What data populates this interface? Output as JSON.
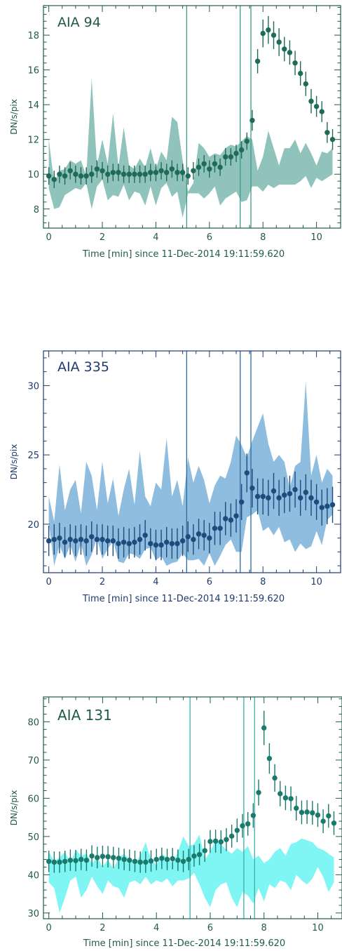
{
  "chart_data": [
    {
      "type": "scatter",
      "title": "AIA 94",
      "xlabel": "Time [min] since 11-Dec-2014 19:11:59.620",
      "ylabel": "DN/s/pix",
      "xlim": [
        -0.2,
        10.9
      ],
      "ylim": [
        6.9,
        19.7
      ],
      "xticks": [
        0,
        2,
        4,
        6,
        8,
        10
      ],
      "yticks": [
        8,
        10,
        12,
        14,
        16,
        18
      ],
      "vlines": [
        5.15,
        7.15,
        7.55
      ],
      "colors": {
        "axis": "#1f5a4a",
        "marker": "#1f6b57",
        "band": "#8fc3bc",
        "vline": "#3a9a8c"
      },
      "x": [
        0,
        0.2,
        0.4,
        0.6,
        0.8,
        1.0,
        1.2,
        1.4,
        1.6,
        1.8,
        2.0,
        2.2,
        2.4,
        2.6,
        2.8,
        3.0,
        3.2,
        3.4,
        3.6,
        3.8,
        4.0,
        4.2,
        4.4,
        4.6,
        4.8,
        5.0,
        5.2,
        5.4,
        5.6,
        5.8,
        6.0,
        6.2,
        6.4,
        6.6,
        6.8,
        7.0,
        7.2,
        7.4,
        7.6,
        7.8,
        8.0,
        8.2,
        8.4,
        8.6,
        8.8,
        9.0,
        9.2,
        9.4,
        9.6,
        9.8,
        10.0,
        10.2,
        10.4,
        10.6
      ],
      "y": [
        9.9,
        9.7,
        10.0,
        9.9,
        10.2,
        10.0,
        9.9,
        9.9,
        10.0,
        10.3,
        10.2,
        10.0,
        10.1,
        10.1,
        10.0,
        10.0,
        10.0,
        10.0,
        10.0,
        10.1,
        10.1,
        10.2,
        10.1,
        10.3,
        10.1,
        10.1,
        9.9,
        10.2,
        10.4,
        10.6,
        10.3,
        10.6,
        10.4,
        11.0,
        11.0,
        11.2,
        11.4,
        11.9,
        13.1,
        16.5,
        18.1,
        18.3,
        18.0,
        17.6,
        17.2,
        17.0,
        16.4,
        15.8,
        15.2,
        14.2,
        13.9,
        13.6,
        12.4,
        12.0
      ],
      "err": [
        0.5,
        0.5,
        0.5,
        0.5,
        0.5,
        0.5,
        0.5,
        0.5,
        0.5,
        0.5,
        0.5,
        0.5,
        0.5,
        0.5,
        0.5,
        0.5,
        0.5,
        0.5,
        0.5,
        0.5,
        0.5,
        0.5,
        0.5,
        0.5,
        0.5,
        0.5,
        0.5,
        0.5,
        0.5,
        0.5,
        0.5,
        0.5,
        0.5,
        0.5,
        0.5,
        0.5,
        0.5,
        0.5,
        0.6,
        0.7,
        0.8,
        0.8,
        0.8,
        0.8,
        0.7,
        0.7,
        0.7,
        0.7,
        0.7,
        0.7,
        0.6,
        0.6,
        0.6,
        0.6
      ],
      "band_upper": [
        12.0,
        9.5,
        10.2,
        10.3,
        10.8,
        10.6,
        10.8,
        9.9,
        15.5,
        10.5,
        12.0,
        10.6,
        13.5,
        10.4,
        12.7,
        10.5,
        10.3,
        10.9,
        10.4,
        11.5,
        10.3,
        11.3,
        10.8,
        13.3,
        13.0,
        10.8,
        9.0,
        9.5,
        11.8,
        11.5,
        11.0,
        11.2,
        11.1,
        11.5,
        11.7,
        11.6,
        11.9,
        12.2,
        12.0,
        10.2,
        11.0,
        12.5,
        11.5,
        10.5,
        11.5,
        11.5,
        12.0,
        11.2,
        11.8,
        11.2,
        10.5,
        11.3,
        11.2,
        11.5
      ],
      "band_lower": [
        9.2,
        8.0,
        8.1,
        8.8,
        9.0,
        9.2,
        9.1,
        9.5,
        8.0,
        9.3,
        9.7,
        8.5,
        8.8,
        8.7,
        9.4,
        8.5,
        9.0,
        8.9,
        8.2,
        9.3,
        8.2,
        9.2,
        9.5,
        8.7,
        9.0,
        7.5,
        8.9,
        8.9,
        8.9,
        8.6,
        8.9,
        9.3,
        8.2,
        8.6,
        8.8,
        9.0,
        8.4,
        8.5,
        9.3,
        9.3,
        9.0,
        9.4,
        9.2,
        9.4,
        9.4,
        9.4,
        9.4,
        9.6,
        9.9,
        9.2,
        9.8,
        9.6,
        9.8,
        10.0
      ]
    },
    {
      "type": "scatter",
      "title": "AIA 335",
      "xlabel": "Time [min] since 11-Dec-2014 19:11:59.620",
      "ylabel": "DN/s/pix",
      "xlim": [
        -0.2,
        10.9
      ],
      "ylim": [
        16.5,
        32.5
      ],
      "xticks": [
        0,
        2,
        4,
        6,
        8,
        10
      ],
      "yticks": [
        20,
        25,
        30
      ],
      "vlines": [
        5.15,
        7.15,
        7.55
      ],
      "colors": {
        "axis": "#1e3a6e",
        "marker": "#1e4a7c",
        "band": "#8fbddf",
        "vline": "#2f6b9c"
      },
      "x": [
        0,
        0.2,
        0.4,
        0.6,
        0.8,
        1.0,
        1.2,
        1.4,
        1.6,
        1.8,
        2.0,
        2.2,
        2.4,
        2.6,
        2.8,
        3.0,
        3.2,
        3.4,
        3.6,
        3.8,
        4.0,
        4.2,
        4.4,
        4.6,
        4.8,
        5.0,
        5.2,
        5.4,
        5.6,
        5.8,
        6.0,
        6.2,
        6.4,
        6.6,
        6.8,
        7.0,
        7.2,
        7.4,
        7.6,
        7.8,
        8.0,
        8.2,
        8.4,
        8.6,
        8.8,
        9.0,
        9.2,
        9.4,
        9.6,
        9.8,
        10.0,
        10.2,
        10.4,
        10.6
      ],
      "y": [
        18.8,
        18.9,
        19.0,
        18.7,
        18.9,
        18.8,
        18.9,
        18.8,
        19.1,
        18.9,
        18.9,
        18.8,
        18.8,
        18.6,
        18.7,
        18.6,
        18.7,
        18.9,
        19.2,
        18.6,
        18.5,
        18.5,
        18.7,
        18.6,
        18.6,
        18.8,
        19.1,
        18.9,
        19.3,
        19.2,
        19.0,
        19.7,
        19.7,
        20.4,
        20.3,
        20.6,
        21.6,
        23.7,
        22.6,
        22.0,
        22.0,
        21.9,
        22.4,
        21.9,
        22.1,
        22.2,
        22.5,
        21.9,
        22.3,
        21.9,
        21.6,
        21.2,
        21.3,
        21.4
      ],
      "err": [
        1.1,
        1.1,
        1.1,
        1.1,
        1.1,
        1.1,
        1.1,
        1.1,
        1.1,
        1.1,
        1.1,
        1.1,
        1.1,
        1.1,
        1.1,
        1.1,
        1.1,
        1.1,
        1.1,
        1.1,
        1.1,
        1.1,
        1.1,
        1.1,
        1.1,
        1.1,
        1.1,
        1.1,
        1.1,
        1.1,
        1.1,
        1.2,
        1.2,
        1.2,
        1.2,
        1.2,
        1.3,
        1.4,
        1.4,
        1.3,
        1.3,
        1.3,
        1.3,
        1.3,
        1.3,
        1.3,
        1.3,
        1.3,
        1.3,
        1.3,
        1.3,
        1.3,
        1.3,
        1.3
      ],
      "band_upper": [
        22.0,
        20.2,
        24.3,
        21.0,
        22.5,
        23.2,
        20.8,
        24.5,
        23.5,
        21.0,
        24.5,
        21.5,
        23.3,
        20.6,
        22.5,
        24.0,
        21.4,
        25.3,
        22.0,
        21.3,
        23.0,
        22.5,
        26.2,
        22.0,
        23.2,
        21.3,
        24.8,
        23.0,
        24.2,
        23.2,
        21.5,
        22.8,
        23.5,
        23.3,
        24.5,
        26.4,
        25.7,
        24.8,
        26.0,
        27.0,
        28.0,
        25.8,
        24.5,
        25.0,
        24.5,
        22.6,
        24.2,
        24.5,
        30.3,
        23.5,
        25.0,
        23.0,
        24.0,
        23.5
      ],
      "band_lower": [
        20.2,
        17.0,
        18.5,
        17.5,
        18.5,
        17.3,
        18.6,
        17.0,
        17.8,
        19.0,
        17.5,
        18.2,
        18.8,
        17.3,
        17.2,
        17.9,
        17.8,
        17.5,
        18.2,
        18.3,
        17.4,
        17.7,
        17.0,
        17.2,
        17.3,
        17.9,
        17.4,
        17.4,
        17.5,
        17.0,
        17.9,
        17.0,
        17.7,
        18.5,
        18.9,
        18.0,
        18.0,
        20.5,
        20.7,
        21.0,
        19.5,
        19.8,
        19.2,
        19.8,
        18.7,
        18.9,
        18.0,
        18.6,
        18.2,
        18.4,
        19.5,
        18.5,
        20.3,
        20.7
      ]
    },
    {
      "type": "scatter",
      "title": "AIA 131",
      "xlabel": "Time [min] since 11-Dec-2014 19:11:59.620",
      "ylabel": "DN/s/pix",
      "xlim": [
        -0.2,
        10.9
      ],
      "ylim": [
        28.5,
        86.5
      ],
      "xticks": [
        0,
        2,
        4,
        6,
        8,
        10
      ],
      "yticks": [
        30,
        40,
        50,
        60,
        70,
        80
      ],
      "vlines": [
        5.25,
        7.25,
        7.65
      ],
      "colors": {
        "axis": "#1f5a4a",
        "marker": "#1a7a6c",
        "band": "#7ff5f4",
        "vline": "#38b0a8"
      },
      "x": [
        0,
        0.2,
        0.4,
        0.6,
        0.8,
        1.0,
        1.2,
        1.4,
        1.6,
        1.8,
        2.0,
        2.2,
        2.4,
        2.6,
        2.8,
        3.0,
        3.2,
        3.4,
        3.6,
        3.8,
        4.0,
        4.2,
        4.4,
        4.6,
        4.8,
        5.0,
        5.2,
        5.4,
        5.6,
        5.8,
        6.0,
        6.2,
        6.4,
        6.6,
        6.8,
        7.0,
        7.2,
        7.4,
        7.6,
        7.8,
        8.0,
        8.2,
        8.4,
        8.6,
        8.8,
        9.0,
        9.2,
        9.4,
        9.6,
        9.8,
        10.0,
        10.2,
        10.4,
        10.6
      ],
      "y": [
        43.5,
        43.3,
        43.3,
        43.5,
        43.8,
        43.7,
        44.0,
        43.8,
        44.9,
        44.5,
        44.8,
        44.7,
        44.5,
        44.3,
        44.0,
        43.8,
        43.5,
        43.3,
        43.3,
        43.6,
        44.0,
        44.3,
        44.0,
        44.2,
        43.8,
        43.5,
        44.0,
        44.9,
        45.3,
        46.3,
        48.7,
        48.8,
        48.6,
        49.2,
        50.1,
        51.6,
        52.8,
        53.3,
        55.5,
        61.5,
        78.4,
        70.4,
        65.3,
        61.2,
        60.1,
        59.9,
        57.4,
        56.3,
        56.4,
        56.2,
        55.6,
        54.0,
        55.4,
        53.5
      ],
      "err": [
        2.8,
        2.8,
        2.8,
        2.8,
        2.8,
        2.8,
        2.8,
        2.8,
        2.8,
        2.8,
        2.8,
        2.8,
        2.8,
        2.8,
        2.8,
        2.8,
        2.8,
        2.8,
        2.8,
        2.8,
        2.8,
        2.8,
        2.8,
        2.8,
        2.8,
        2.8,
        2.8,
        2.8,
        2.8,
        2.9,
        3.0,
        3.0,
        3.0,
        3.0,
        3.0,
        3.1,
        3.1,
        3.1,
        3.2,
        3.4,
        4.5,
        4.0,
        3.6,
        3.3,
        3.2,
        3.2,
        3.2,
        3.1,
        3.1,
        3.1,
        3.1,
        3.1,
        3.1,
        3.1
      ],
      "band_upper": [
        46.0,
        43.5,
        44.5,
        46.0,
        43.0,
        46.5,
        45.0,
        45.5,
        43.0,
        44.5,
        42.0,
        44.0,
        41.5,
        44.5,
        45.5,
        44.0,
        43.0,
        45.0,
        48.5,
        44.0,
        42.5,
        45.5,
        44.5,
        43.0,
        46.0,
        50.0,
        47.5,
        48.0,
        50.5,
        44.0,
        46.0,
        49.0,
        48.0,
        46.5,
        45.5,
        47.0,
        46.0,
        47.5,
        44.0,
        45.0,
        43.0,
        44.0,
        46.0,
        47.0,
        45.0,
        48.0,
        48.5,
        49.5,
        49.0,
        48.5,
        47.0,
        46.5,
        45.5,
        44.5
      ],
      "band_lower": [
        38.0,
        36.5,
        30.0,
        34.0,
        38.5,
        39.5,
        34.0,
        36.0,
        39.5,
        37.0,
        35.0,
        38.5,
        37.0,
        36.5,
        34.0,
        38.0,
        38.5,
        37.5,
        39.5,
        37.5,
        38.5,
        38.0,
        39.0,
        37.0,
        38.5,
        38.5,
        39.0,
        40.5,
        37.5,
        34.0,
        31.5,
        36.0,
        37.5,
        38.0,
        34.0,
        31.5,
        35.5,
        34.5,
        32.5,
        36.5,
        33.0,
        37.5,
        36.5,
        38.5,
        38.0,
        36.0,
        40.0,
        38.5,
        37.5,
        39.0,
        42.0,
        39.5,
        35.5,
        38.0
      ]
    }
  ]
}
